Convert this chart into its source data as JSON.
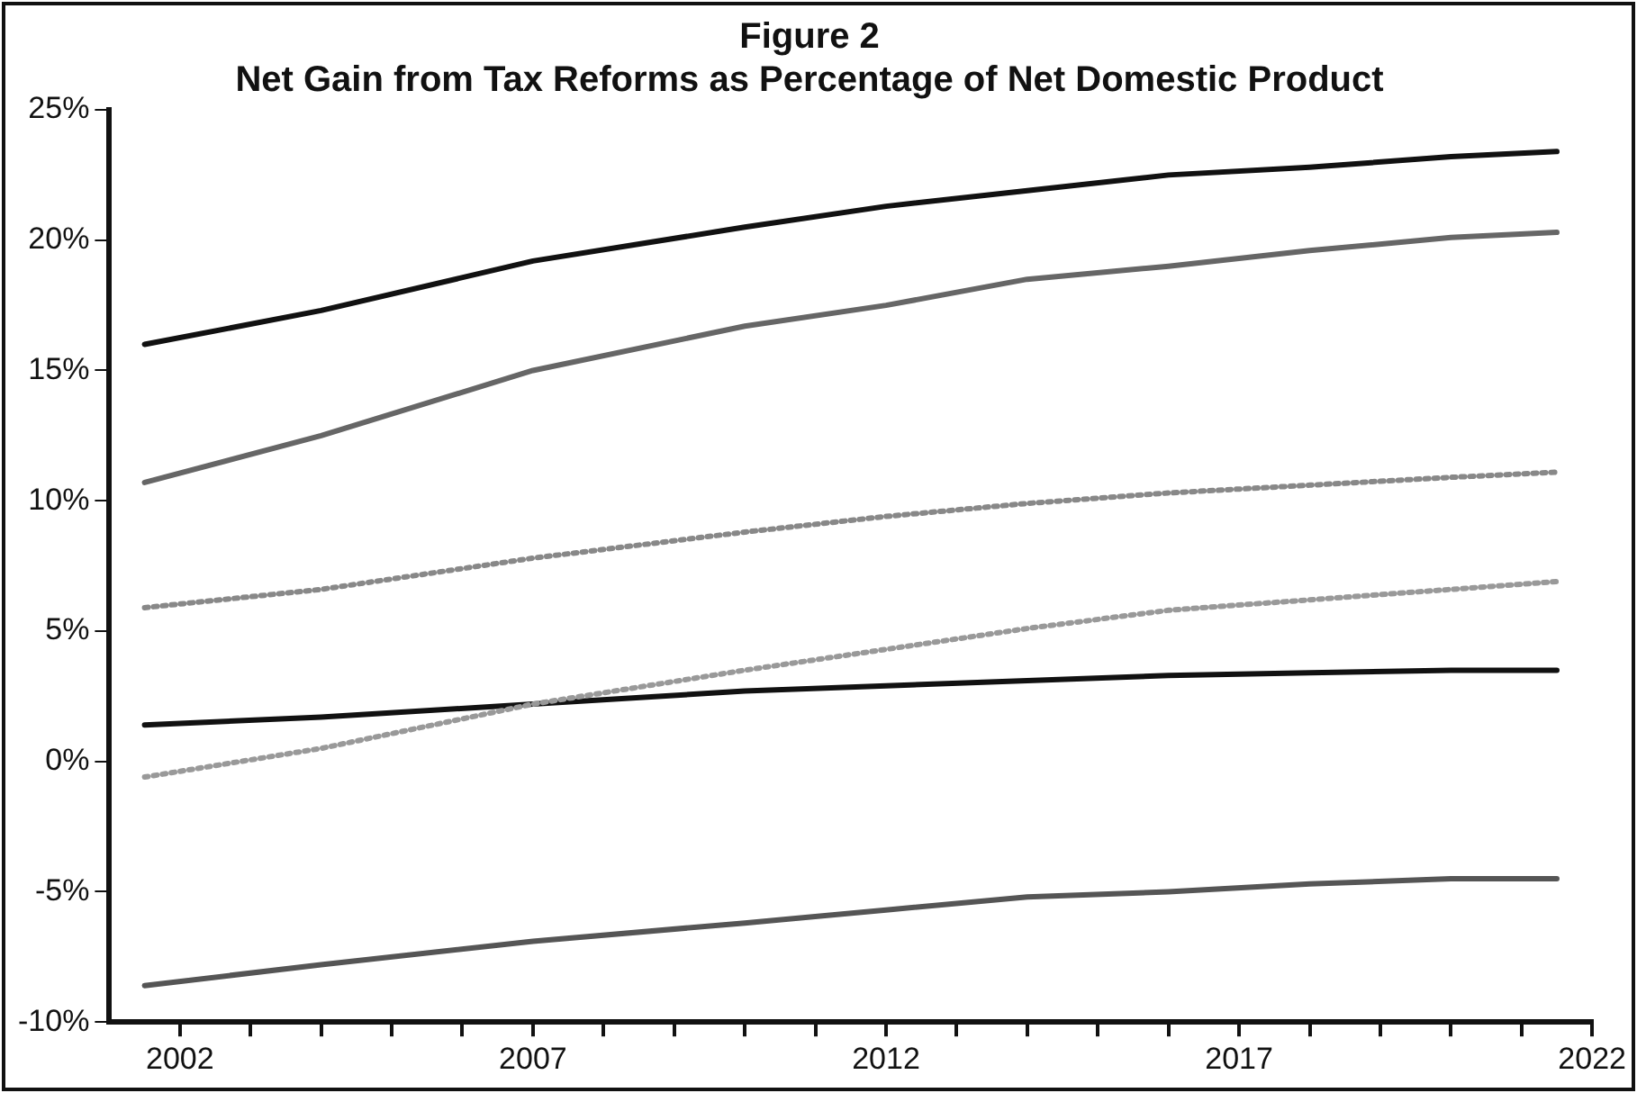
{
  "chart_data": {
    "type": "line",
    "title": "Figure 2",
    "subtitle": "Net Gain from Tax Reforms as Percentage of Net Domestic Product",
    "x": [
      2001.5,
      2004,
      2007,
      2010,
      2012,
      2014,
      2016,
      2018,
      2020,
      2021.5
    ],
    "series": [
      {
        "color": "#111111",
        "line_style": "solid",
        "values": [
          16.0,
          17.3,
          19.2,
          20.5,
          21.3,
          21.9,
          22.5,
          22.8,
          23.2,
          23.4
        ]
      },
      {
        "color": "#666666",
        "line_style": "solid",
        "values": [
          10.7,
          12.5,
          15.0,
          16.7,
          17.5,
          18.5,
          19.0,
          19.6,
          20.1,
          20.3
        ]
      },
      {
        "color": "#888888",
        "line_style": "dotted",
        "values": [
          5.9,
          6.6,
          7.8,
          8.8,
          9.4,
          9.9,
          10.3,
          10.6,
          10.9,
          11.1
        ]
      },
      {
        "color": "#999999",
        "line_style": "dotted",
        "values": [
          -0.6,
          0.5,
          2.2,
          3.5,
          4.3,
          5.1,
          5.8,
          6.2,
          6.6,
          6.9
        ]
      },
      {
        "color": "#111111",
        "line_style": "solid",
        "values": [
          1.4,
          1.7,
          2.2,
          2.7,
          2.9,
          3.1,
          3.3,
          3.4,
          3.5,
          3.5
        ]
      },
      {
        "color": "#555555",
        "line_style": "solid",
        "values": [
          -8.6,
          -7.8,
          -6.9,
          -6.2,
          -5.7,
          -5.2,
          -5.0,
          -4.7,
          -4.5,
          -4.5
        ]
      }
    ],
    "xlim": [
      2001,
      2022
    ],
    "xticks": [
      2002,
      {
        "value": 2003,
        "label": null
      },
      {
        "value": 2004,
        "label": null
      },
      {
        "value": 2005,
        "label": null
      },
      {
        "value": 2006,
        "label": null
      },
      2007,
      {
        "value": 2008,
        "label": null
      },
      {
        "value": 2009,
        "label": null
      },
      {
        "value": 2010,
        "label": null
      },
      {
        "value": 2011,
        "label": null
      },
      2012,
      {
        "value": 2013,
        "label": null
      },
      {
        "value": 2014,
        "label": null
      },
      {
        "value": 2015,
        "label": null
      },
      {
        "value": 2016,
        "label": null
      },
      2017,
      {
        "value": 2018,
        "label": null
      },
      {
        "value": 2019,
        "label": null
      },
      {
        "value": 2020,
        "label": null
      },
      {
        "value": 2021,
        "label": null
      },
      2022
    ],
    "ylim": [
      -10,
      25
    ],
    "yticks": [
      {
        "value": -10,
        "label": "-10%"
      },
      {
        "value": -5,
        "label": "-5%"
      },
      {
        "value": 0,
        "label": "0%"
      },
      {
        "value": 5,
        "label": "5%"
      },
      {
        "value": 10,
        "label": "10%"
      },
      {
        "value": 15,
        "label": "15%"
      },
      {
        "value": 20,
        "label": "20%"
      },
      {
        "value": 25,
        "label": "25%"
      }
    ],
    "grid": false,
    "legend": false
  }
}
